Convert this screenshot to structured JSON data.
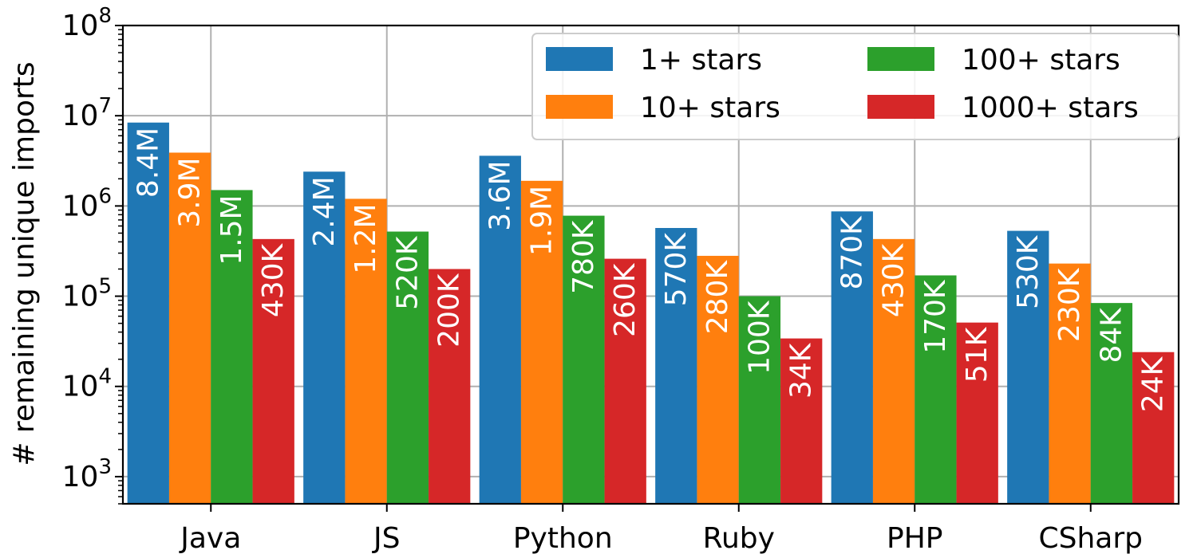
{
  "chart_data": {
    "type": "bar",
    "ylabel": "# remaining unique imports",
    "yscale": "log",
    "ylim": [
      500,
      100000000
    ],
    "yticks": [
      {
        "base": "10",
        "exp": "3"
      },
      {
        "base": "10",
        "exp": "4"
      },
      {
        "base": "10",
        "exp": "5"
      },
      {
        "base": "10",
        "exp": "6"
      },
      {
        "base": "10",
        "exp": "7"
      },
      {
        "base": "10",
        "exp": "8"
      }
    ],
    "categories": [
      "Java",
      "JS",
      "Python",
      "Ruby",
      "PHP",
      "CSharp"
    ],
    "grid": true,
    "legend_position": "top-right",
    "series": [
      {
        "name": "1+ stars",
        "color": "#1f77b4",
        "values": [
          8400000,
          2400000,
          3600000,
          570000,
          870000,
          530000
        ],
        "labels": [
          "8.4M",
          "2.4M",
          "3.6M",
          "570K",
          "870K",
          "530K"
        ]
      },
      {
        "name": "10+ stars",
        "color": "#ff7f0e",
        "values": [
          3900000,
          1200000,
          1900000,
          280000,
          430000,
          230000
        ],
        "labels": [
          "3.9M",
          "1.2M",
          "1.9M",
          "280K",
          "430K",
          "230K"
        ]
      },
      {
        "name": "100+ stars",
        "color": "#2ca02c",
        "values": [
          1500000,
          520000,
          780000,
          100000,
          170000,
          84000
        ],
        "labels": [
          "1.5M",
          "520K",
          "780K",
          "100K",
          "170K",
          "84K"
        ]
      },
      {
        "name": "1000+ stars",
        "color": "#d62728",
        "values": [
          430000,
          200000,
          260000,
          34000,
          51000,
          24000
        ],
        "labels": [
          "430K",
          "200K",
          "260K",
          "34K",
          "51K",
          "24K"
        ]
      }
    ]
  }
}
